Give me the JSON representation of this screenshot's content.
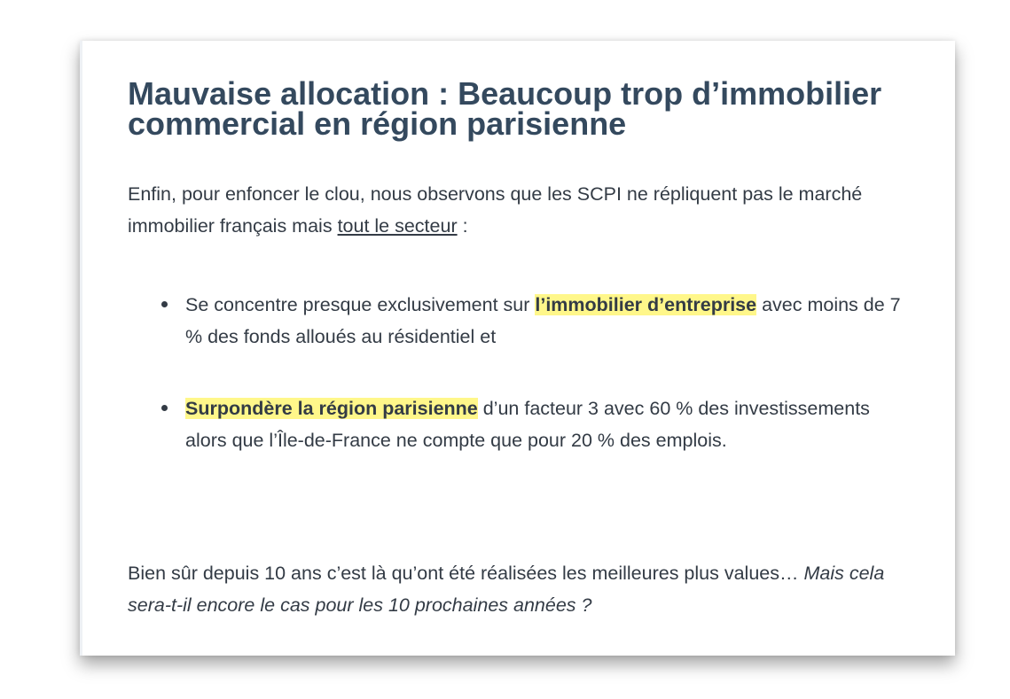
{
  "title": "Mauvaise allocation : Beaucoup trop d’immobilier commercial en région parisienne",
  "intro": {
    "text_before": "Enfin, pour enfoncer le clou, nous observons que les SCPI ne répliquent pas le marché immobilier français mais ",
    "underlined": "tout le secteur",
    "text_after": " :"
  },
  "bullets": [
    {
      "before": "Se concentre presque exclusivement sur ",
      "highlight": "l’immobilier d’entreprise",
      "after": " avec moins de 7 % des fonds alloués au résidentiel et"
    },
    {
      "before": "",
      "highlight": "Surpondère la région parisienne",
      "after": " d’un facteur 3 avec 60 % des investissements alors que l’Île-de-France ne compte que pour 20 % des emplois."
    }
  ],
  "conclusion": {
    "text": "Bien sûr depuis 10 ans c’est là qu’ont été réalisées les meilleures plus values… ",
    "italic": "Mais cela sera-t-il encore le cas pour les 10 prochaines années ?"
  },
  "colors": {
    "heading": "#34495e",
    "body_text": "#333b45",
    "highlight": "#fff78a"
  }
}
